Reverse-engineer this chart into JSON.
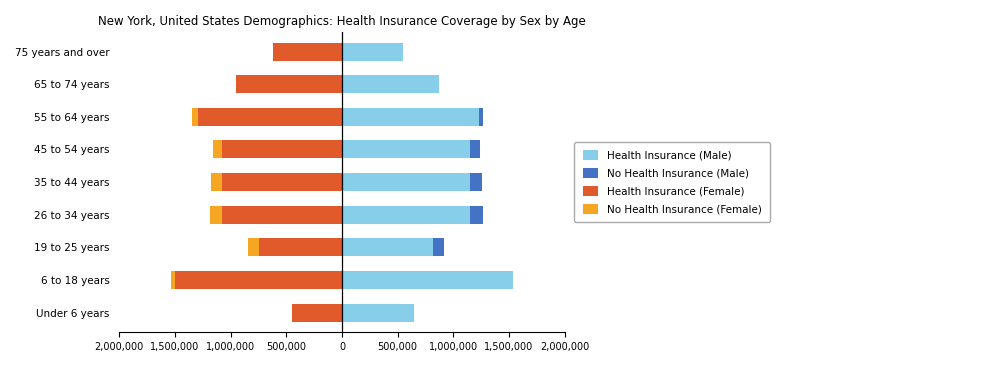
{
  "title": "New York, United States Demographics: Health Insurance Coverage by Sex by Age",
  "age_groups": [
    "Under 6 years",
    "6 to 18 years",
    "19 to 25 years",
    "26 to 34 years",
    "35 to 44 years",
    "45 to 54 years",
    "55 to 64 years",
    "65 to 74 years",
    "75 years and over"
  ],
  "health_ins_male": [
    650000,
    1540000,
    820000,
    1150000,
    1150000,
    1150000,
    1230000,
    870000,
    550000
  ],
  "no_health_ins_male": [
    0,
    0,
    100000,
    120000,
    110000,
    90000,
    40000,
    0,
    0
  ],
  "health_ins_female": [
    450000,
    1500000,
    750000,
    1080000,
    1080000,
    1080000,
    1290000,
    950000,
    620000
  ],
  "no_health_ins_female": [
    0,
    40000,
    95000,
    110000,
    100000,
    80000,
    55000,
    0,
    0
  ],
  "color_health_ins_male": "#87CEEB",
  "color_no_health_ins_male": "#4472C4",
  "color_health_ins_female": "#E05A2B",
  "color_no_health_ins_female": "#F5A623",
  "xlim": 2000000,
  "background_color": "#ffffff"
}
